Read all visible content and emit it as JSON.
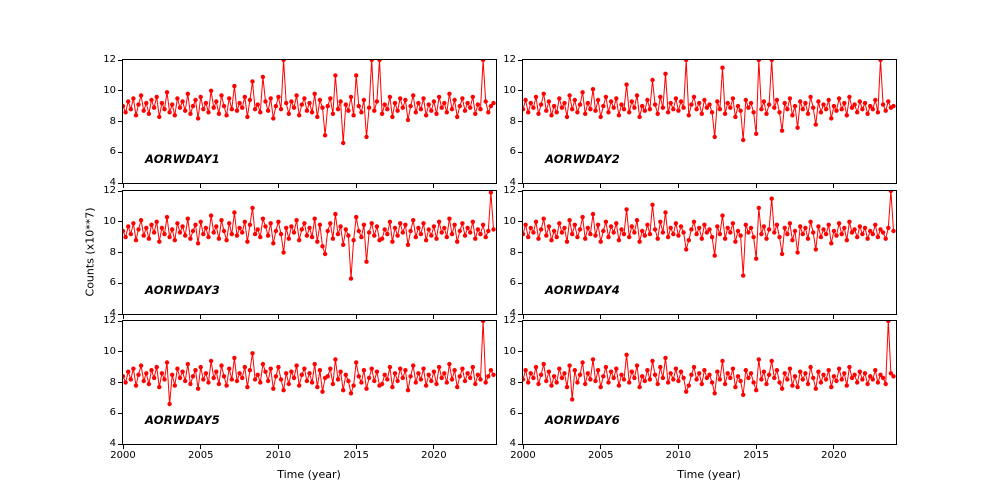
{
  "figure": {
    "background": "#ffffff",
    "line_color": "#ff0000",
    "xlabel": "Time (year)",
    "ylabel": "Counts (x10**7)",
    "xticks": [
      2000,
      2005,
      2010,
      2015,
      2020
    ],
    "yticks": [
      4,
      6,
      8,
      10,
      12
    ],
    "xlim": [
      2000,
      2024
    ],
    "ylim": [
      4,
      12
    ]
  },
  "chart_data": [
    {
      "type": "line",
      "title": "AORWDAY1",
      "xlabel": "Time (year)",
      "ylabel": "Counts (x10**7)",
      "x_start": 2000.0,
      "x_step": 0.1667,
      "xlim": [
        2000,
        2024
      ],
      "ylim": [
        4,
        12
      ],
      "values": [
        9.0,
        8.6,
        9.3,
        8.8,
        9.5,
        8.4,
        9.1,
        9.7,
        8.7,
        9.2,
        8.5,
        9.4,
        8.9,
        9.6,
        8.3,
        9.2,
        8.8,
        9.9,
        8.6,
        9.1,
        8.4,
        9.5,
        8.9,
        9.3,
        8.7,
        9.8,
        8.5,
        9.0,
        9.4,
        8.2,
        9.6,
        8.8,
        9.2,
        8.6,
        10.0,
        8.9,
        9.3,
        8.5,
        9.7,
        9.0,
        8.4,
        9.5,
        8.8,
        10.3,
        8.7,
        9.2,
        8.9,
        9.6,
        8.3,
        9.4,
        10.6,
        8.8,
        9.1,
        8.6,
        10.9,
        9.3,
        8.7,
        9.5,
        8.2,
        9.0,
        9.6,
        8.8,
        12.0,
        9.2,
        8.5,
        9.3,
        8.9,
        9.7,
        8.4,
        9.1,
        9.5,
        8.7,
        9.2,
        8.6,
        9.8,
        8.3,
        9.4,
        8.9,
        7.1,
        9.0,
        9.5,
        8.5,
        11.0,
        8.8,
        9.3,
        6.6,
        9.1,
        8.7,
        9.6,
        8.4,
        11.0,
        9.0,
        8.6,
        9.4,
        7.0,
        8.9,
        12.0,
        8.7,
        9.3,
        12.0,
        8.5,
        9.1,
        8.8,
        9.6,
        8.3,
        9.2,
        8.7,
        9.5,
        8.9,
        9.4,
        8.1,
        9.0,
        9.7,
        8.6,
        9.2,
        8.8,
        9.5,
        8.4,
        9.1,
        8.7,
        9.3,
        8.5,
        9.6,
        8.9,
        9.2,
        8.6,
        9.8,
        8.8,
        9.4,
        8.3,
        9.0,
        9.5,
        8.7,
        9.2,
        8.9,
        9.6,
        8.5,
        9.1,
        8.8,
        12.0,
        9.3,
        8.6,
        9.0,
        9.2
      ]
    },
    {
      "type": "line",
      "title": "AORWDAY2",
      "xlabel": "Time (year)",
      "ylabel": "Counts (x10**7)",
      "x_start": 2000.0,
      "x_step": 0.1667,
      "xlim": [
        2000,
        2024
      ],
      "ylim": [
        4,
        12
      ],
      "values": [
        8.8,
        9.4,
        8.6,
        9.2,
        8.9,
        9.6,
        8.5,
        9.1,
        9.8,
        8.7,
        9.3,
        8.4,
        9.0,
        8.6,
        9.5,
        8.9,
        9.2,
        8.3,
        9.7,
        8.8,
        9.4,
        8.6,
        9.1,
        9.9,
        8.5,
        9.2,
        8.8,
        10.1,
        8.7,
        9.4,
        8.3,
        9.0,
        9.6,
        8.6,
        9.3,
        8.9,
        9.5,
        8.4,
        9.1,
        8.8,
        10.4,
        8.6,
        9.3,
        8.9,
        9.7,
        8.3,
        9.0,
        8.7,
        9.4,
        8.8,
        10.7,
        9.1,
        8.5,
        9.6,
        8.9,
        11.1,
        8.6,
        9.2,
        8.8,
        9.5,
        8.7,
        9.3,
        8.9,
        12.0,
        8.4,
        9.1,
        9.6,
        8.8,
        9.2,
        8.5,
        9.4,
        8.9,
        9.1,
        8.6,
        7.0,
        9.3,
        8.8,
        11.5,
        8.5,
        9.2,
        8.9,
        9.5,
        8.3,
        9.0,
        8.7,
        6.8,
        9.4,
        8.9,
        9.2,
        8.6,
        7.2,
        12.0,
        8.8,
        9.3,
        8.5,
        9.1,
        12.0,
        8.9,
        9.4,
        8.6,
        7.4,
        9.2,
        8.8,
        9.5,
        8.4,
        9.0,
        7.6,
        9.3,
        8.8,
        9.2,
        8.5,
        9.6,
        8.9,
        7.8,
        9.3,
        8.6,
        9.1,
        8.8,
        9.4,
        8.2,
        9.0,
        8.7,
        9.5,
        8.8,
        9.2,
        8.4,
        9.6,
        8.9,
        9.1,
        8.6,
        9.3,
        8.8,
        9.2,
        8.5,
        9.0,
        8.8,
        9.4,
        8.6,
        12.0,
        9.1,
        8.7,
        9.3,
        8.9,
        9.0
      ]
    },
    {
      "type": "line",
      "title": "AORWDAY3",
      "xlabel": "Time (year)",
      "ylabel": "Counts (x10**7)",
      "x_start": 2000.0,
      "x_step": 0.1667,
      "xlim": [
        2000,
        2024
      ],
      "ylim": [
        4,
        12
      ],
      "values": [
        9.4,
        9.0,
        9.7,
        9.2,
        9.9,
        8.8,
        9.5,
        10.1,
        9.1,
        9.6,
        8.9,
        9.8,
        9.3,
        10.0,
        8.7,
        9.6,
        9.2,
        10.3,
        9.0,
        9.5,
        8.8,
        9.9,
        9.3,
        9.7,
        9.1,
        10.2,
        8.9,
        9.4,
        9.8,
        8.6,
        10.0,
        9.2,
        9.6,
        9.0,
        10.4,
        9.3,
        9.7,
        8.9,
        10.1,
        9.4,
        8.8,
        9.9,
        9.2,
        10.6,
        9.1,
        9.6,
        9.3,
        10.0,
        8.7,
        9.8,
        10.9,
        9.2,
        9.5,
        9.0,
        10.2,
        9.7,
        9.1,
        9.9,
        8.6,
        9.4,
        10.0,
        9.2,
        8.0,
        9.6,
        8.9,
        9.7,
        9.3,
        10.1,
        8.8,
        9.5,
        9.9,
        9.1,
        9.6,
        9.0,
        10.2,
        8.7,
        9.8,
        8.4,
        7.9,
        9.4,
        9.9,
        8.9,
        10.5,
        9.2,
        9.7,
        8.5,
        9.5,
        9.1,
        6.3,
        8.8,
        10.3,
        9.4,
        9.0,
        9.8,
        7.4,
        9.3,
        9.9,
        9.1,
        9.7,
        8.8,
        8.9,
        9.5,
        9.2,
        10.0,
        8.7,
        9.6,
        9.1,
        9.9,
        9.3,
        9.8,
        8.5,
        9.4,
        10.1,
        9.0,
        9.6,
        9.2,
        9.9,
        8.8,
        9.5,
        9.1,
        9.7,
        8.9,
        10.0,
        9.3,
        9.6,
        9.0,
        10.2,
        9.2,
        9.8,
        8.7,
        9.4,
        9.9,
        9.1,
        9.6,
        9.3,
        10.0,
        8.9,
        9.5,
        9.2,
        9.8,
        9.0,
        9.4,
        11.9,
        9.5
      ]
    },
    {
      "type": "line",
      "title": "AORWDAY4",
      "xlabel": "Time (year)",
      "ylabel": "Counts (x10**7)",
      "x_start": 2000.0,
      "x_step": 0.1667,
      "xlim": [
        2000,
        2024
      ],
      "ylim": [
        4,
        12
      ],
      "values": [
        9.2,
        9.8,
        9.0,
        9.6,
        9.3,
        10.0,
        8.9,
        9.5,
        10.2,
        9.1,
        9.7,
        8.8,
        9.4,
        9.0,
        9.9,
        9.3,
        9.6,
        8.7,
        10.1,
        9.2,
        9.8,
        9.0,
        9.5,
        10.3,
        8.9,
        9.6,
        9.2,
        10.5,
        9.1,
        9.8,
        8.7,
        9.4,
        10.0,
        9.0,
        9.7,
        9.3,
        9.9,
        8.8,
        9.5,
        9.2,
        10.8,
        9.0,
        9.7,
        9.3,
        10.1,
        8.7,
        9.4,
        9.1,
        9.8,
        9.2,
        11.1,
        9.5,
        8.9,
        10.0,
        9.3,
        10.6,
        9.0,
        9.6,
        9.2,
        9.9,
        9.1,
        9.7,
        9.3,
        8.2,
        8.8,
        9.5,
        10.0,
        9.2,
        9.6,
        8.9,
        9.8,
        9.3,
        9.5,
        9.0,
        7.8,
        9.7,
        9.2,
        10.4,
        8.9,
        9.6,
        9.3,
        9.9,
        8.7,
        9.4,
        9.1,
        6.5,
        9.8,
        9.3,
        9.6,
        9.0,
        7.6,
        10.9,
        9.2,
        9.7,
        8.9,
        9.5,
        11.5,
        9.3,
        9.8,
        9.0,
        7.9,
        9.6,
        9.2,
        9.9,
        8.8,
        9.4,
        8.0,
        9.7,
        9.2,
        9.6,
        8.9,
        10.0,
        9.3,
        8.2,
        9.7,
        9.0,
        9.5,
        9.2,
        9.8,
        8.6,
        9.4,
        9.1,
        9.9,
        9.2,
        9.6,
        8.8,
        10.0,
        9.3,
        9.5,
        9.0,
        9.7,
        9.2,
        9.6,
        8.9,
        9.4,
        9.2,
        9.8,
        9.0,
        9.5,
        9.3,
        8.9,
        9.6,
        12.0,
        9.4
      ]
    },
    {
      "type": "line",
      "title": "AORWDAY5",
      "xlabel": "Time (year)",
      "ylabel": "Counts (x10**7)",
      "x_start": 2000.0,
      "x_step": 0.1667,
      "xlim": [
        2000,
        2024
      ],
      "ylim": [
        4,
        12
      ],
      "values": [
        8.4,
        8.0,
        8.7,
        8.2,
        8.9,
        7.8,
        8.5,
        9.1,
        8.1,
        8.6,
        7.9,
        8.8,
        8.3,
        9.0,
        7.7,
        8.6,
        8.2,
        9.3,
        6.6,
        8.5,
        7.8,
        8.9,
        8.3,
        8.7,
        8.1,
        9.2,
        7.9,
        8.4,
        8.8,
        7.6,
        9.0,
        8.2,
        8.6,
        8.0,
        9.4,
        8.3,
        8.7,
        7.9,
        9.1,
        8.4,
        7.8,
        8.9,
        8.2,
        9.6,
        8.1,
        8.6,
        8.3,
        9.0,
        7.7,
        8.8,
        9.9,
        8.2,
        8.5,
        8.0,
        9.2,
        8.7,
        8.1,
        8.9,
        7.6,
        8.4,
        9.0,
        8.2,
        7.5,
        8.6,
        7.9,
        8.7,
        8.3,
        9.1,
        7.8,
        8.5,
        8.9,
        8.1,
        8.6,
        8.0,
        9.2,
        7.7,
        8.8,
        7.4,
        8.3,
        8.4,
        8.9,
        7.9,
        9.5,
        8.2,
        8.7,
        7.5,
        8.5,
        8.1,
        7.3,
        7.8,
        9.3,
        8.4,
        8.0,
        8.8,
        7.6,
        8.3,
        8.9,
        8.1,
        8.7,
        7.8,
        7.9,
        8.5,
        8.2,
        9.0,
        7.7,
        8.6,
        8.1,
        8.9,
        8.3,
        8.8,
        7.5,
        8.4,
        9.1,
        8.0,
        8.6,
        8.2,
        8.9,
        7.8,
        8.5,
        8.1,
        8.7,
        7.9,
        9.0,
        8.3,
        8.6,
        8.0,
        9.2,
        8.2,
        8.8,
        7.7,
        8.4,
        8.9,
        8.1,
        8.6,
        8.3,
        9.0,
        7.9,
        8.5,
        8.2,
        12.0,
        8.0,
        8.4,
        8.8,
        8.5
      ]
    },
    {
      "type": "line",
      "title": "AORWDAY6",
      "xlabel": "Time (year)",
      "ylabel": "Counts (x10**7)",
      "x_start": 2000.0,
      "x_step": 0.1667,
      "xlim": [
        2000,
        2024
      ],
      "ylim": [
        4,
        12
      ],
      "values": [
        8.2,
        8.8,
        8.0,
        8.6,
        8.3,
        9.0,
        7.9,
        8.5,
        9.2,
        8.1,
        8.7,
        7.8,
        8.4,
        8.0,
        8.9,
        8.3,
        8.6,
        7.7,
        9.1,
        6.9,
        8.8,
        8.0,
        8.5,
        9.3,
        7.9,
        8.6,
        8.2,
        9.5,
        8.1,
        8.8,
        7.7,
        8.4,
        9.0,
        8.0,
        8.7,
        8.3,
        8.9,
        7.8,
        8.5,
        8.2,
        9.8,
        8.0,
        8.7,
        8.3,
        9.1,
        7.7,
        8.4,
        8.1,
        8.8,
        8.2,
        9.4,
        8.5,
        7.9,
        9.0,
        8.3,
        9.6,
        8.0,
        8.6,
        8.2,
        8.9,
        8.1,
        8.7,
        8.3,
        7.4,
        7.8,
        8.5,
        9.0,
        8.2,
        8.6,
        7.9,
        8.8,
        8.3,
        8.5,
        8.0,
        7.3,
        8.7,
        8.2,
        9.4,
        7.9,
        8.6,
        8.3,
        8.9,
        7.7,
        8.4,
        8.1,
        7.2,
        8.8,
        8.3,
        8.6,
        8.0,
        7.5,
        9.5,
        8.2,
        8.7,
        7.9,
        8.5,
        9.4,
        8.3,
        8.8,
        8.0,
        7.6,
        8.6,
        8.2,
        8.9,
        7.8,
        8.4,
        7.7,
        8.7,
        8.2,
        8.6,
        7.9,
        9.0,
        8.3,
        7.6,
        8.7,
        8.0,
        8.5,
        8.2,
        8.8,
        7.7,
        8.4,
        8.1,
        8.9,
        8.2,
        8.6,
        7.8,
        9.0,
        8.3,
        8.5,
        8.0,
        8.7,
        8.2,
        8.6,
        7.9,
        8.4,
        8.2,
        8.8,
        8.0,
        8.5,
        8.3,
        7.9,
        12.0,
        8.6,
        8.4
      ]
    }
  ]
}
